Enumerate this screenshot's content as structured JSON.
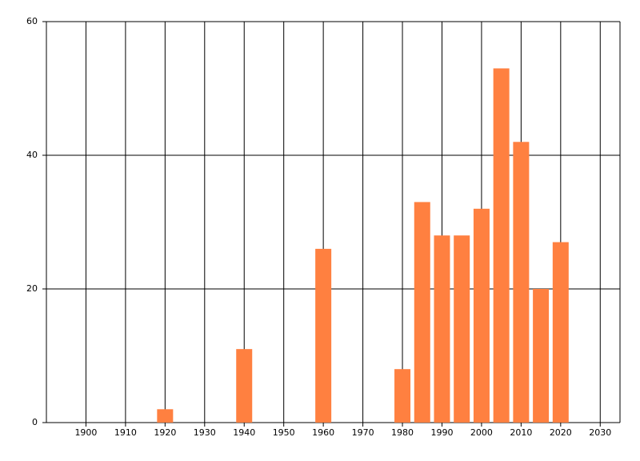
{
  "chart_data": {
    "type": "bar",
    "x": [
      1920,
      1940,
      1960,
      1980,
      1985,
      1990,
      1995,
      2000,
      2005,
      2010,
      2015,
      2020
    ],
    "values": [
      2,
      11,
      26,
      8,
      33,
      28,
      28,
      32,
      53,
      42,
      20,
      27
    ],
    "color": "#ff8040",
    "xlim": [
      1890,
      2035
    ],
    "xticks": [
      1900,
      1910,
      1920,
      1930,
      1940,
      1950,
      1960,
      1970,
      1980,
      1990,
      2000,
      2010,
      2020,
      2030
    ],
    "ylim": [
      0,
      60
    ],
    "yticks": [
      0,
      20,
      40,
      60
    ],
    "grid": true
  }
}
